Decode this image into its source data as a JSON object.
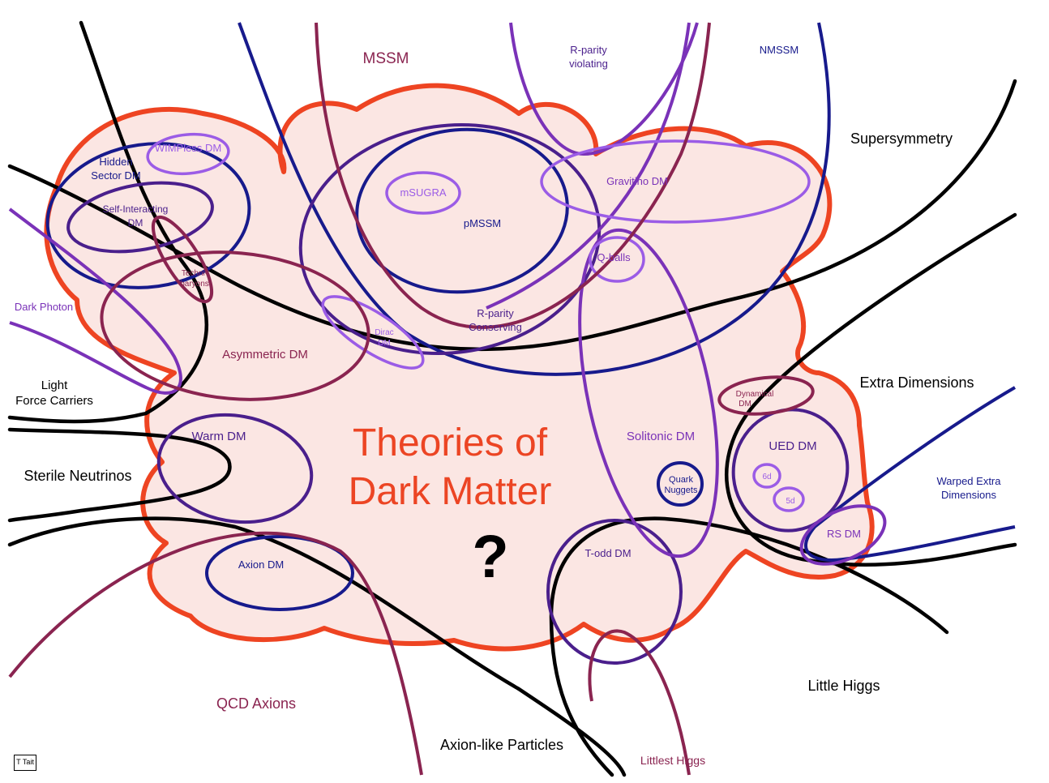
{
  "title": {
    "line1": "Theories of",
    "line2": "Dark Matter",
    "mark": "?"
  },
  "credit": "T Tait",
  "colors": {
    "cloud_fill": "#fbe6e3",
    "cloud_stroke": "#ee4422",
    "title": "#ec4524",
    "black": "#000000",
    "navy": "#171a8c",
    "indigo": "#4a1f8c",
    "violet": "#7a32b8",
    "lavender": "#9b5ce6",
    "maroon": "#8a2450"
  },
  "labels": {
    "mssm": "MSSM",
    "rparity_violating_1": "R-parity",
    "rparity_violating_2": "violating",
    "nmssm": "NMSSM",
    "supersymmetry": "Supersymmetry",
    "hidden_sector_1": "Hidden",
    "hidden_sector_2": "Sector DM",
    "wimpless": "WIMPless DM",
    "self_interacting_1": "Self-Interacting",
    "self_interacting_2": "DM",
    "technibaryons_1": "Techni-",
    "technibaryons_2": "baryons",
    "msugra": "mSUGRA",
    "pmssm": "pMSSM",
    "gravitino": "Gravitino DM",
    "qballs": "Q-balls",
    "dark_photon": "Dark Photon",
    "dirac_1": "Dirac",
    "dirac_2": "DM",
    "rparity_conserving_1": "R-parity",
    "rparity_conserving_2": "Conserving",
    "asymmetric": "Asymmetric DM",
    "light_force_1": "Light",
    "light_force_2": "Force Carriers",
    "extra_dimensions": "Extra Dimensions",
    "dynamical_1": "Dynamical",
    "dynamical_2": "DM",
    "warm": "Warm DM",
    "solitonic": "Solitonic DM",
    "ued": "UED DM",
    "sterile": "Sterile Neutrinos",
    "quark_nuggets_1": "Quark",
    "quark_nuggets_2": "Nuggets",
    "six_d": "6d",
    "five_d": "5d",
    "warped_1": "Warped Extra",
    "warped_2": "Dimensions",
    "rs": "RS DM",
    "axion_dm": "Axion DM",
    "todd": "T-odd DM",
    "little_higgs": "Little Higgs",
    "qcd_axions": "QCD Axions",
    "axion_like": "Axion-like Particles",
    "littlest_higgs": "Littlest Higgs"
  }
}
